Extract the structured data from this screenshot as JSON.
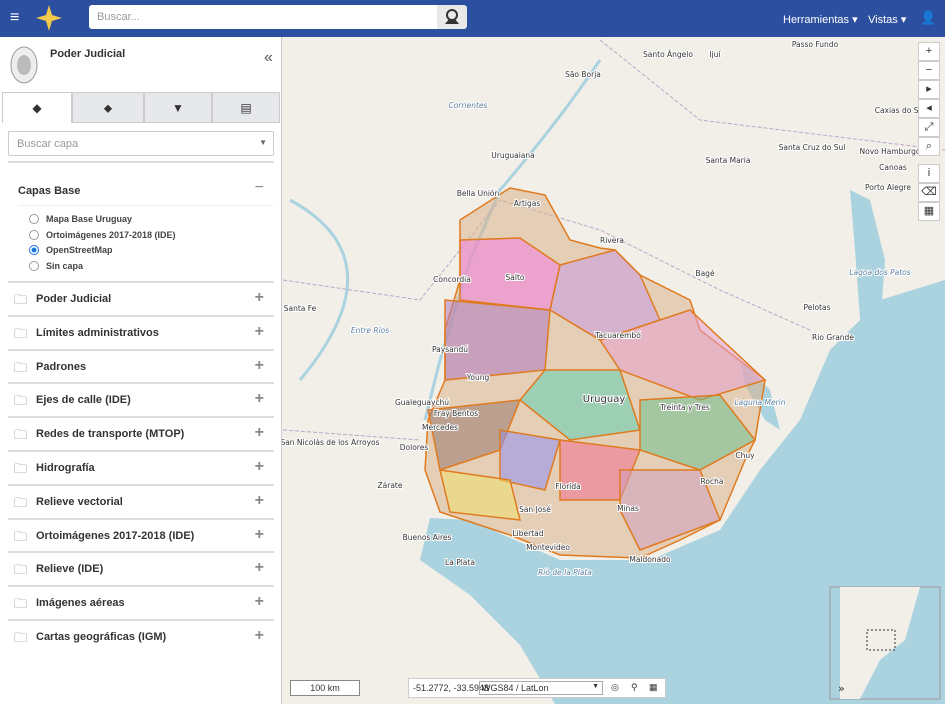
{
  "header": {
    "search_placeholder": "Buscar...",
    "menus": [
      "Herramientas",
      "Vistas"
    ]
  },
  "sidebar": {
    "title": "Poder Judicial",
    "layer_search_placeholder": "Buscar capa",
    "base_section": {
      "title": "Capas Base",
      "options": [
        "Mapa Base Uruguay",
        "Ortoimágenes 2017-2018 (IDE)",
        "OpenStreetMap",
        "Sin capa"
      ],
      "selected": 2
    },
    "groups": [
      "Poder Judicial",
      "Límites administrativos",
      "Padrones",
      "Ejes de calle (IDE)",
      "Redes de transporte (MTOP)",
      "Hidrografía",
      "Relieve vectorial",
      "Ortoimágenes 2017-2018 (IDE)",
      "Relieve (IDE)",
      "Imágenes aéreas",
      "Cartas geográficas (IGM)"
    ]
  },
  "map": {
    "labels": [
      "Passo Fundo",
      "Santo Ângelo",
      "Ijuí",
      "São Borja",
      "Corrientes",
      "Uruguaiana",
      "Santa Maria",
      "Caxias do Sul",
      "Santa Cruz do Sul",
      "Novo Hamburgo",
      "Canoas",
      "Porto Alegre",
      "Bella Unión",
      "Artigas",
      "Rivera",
      "Bagé",
      "Concordia",
      "Salto",
      "Paysandú",
      "Young",
      "Pelotas",
      "Rio Grande",
      "Gualeguaychú",
      "Fray Bentos",
      "Uruguay",
      "Treinta y Tres",
      "Laguna Merín",
      "Lagoa dos Patos",
      "Entre Ríos",
      "Dolores",
      "San Nicolás de los Arroyos",
      "Zárate",
      "Buenos Aires",
      "La Plata",
      "Florida",
      "Minas",
      "Maldonado",
      "Montevideo",
      "Rocha",
      "Chuy",
      "Río de la Plata",
      "Santa Fe",
      "Libertad",
      "Tacuarembó",
      "San José",
      "Mercedes"
    ],
    "scale": "100 km",
    "coordinates": "-51.2772, -33.5948",
    "projection": "WGS84 / LatLon"
  }
}
